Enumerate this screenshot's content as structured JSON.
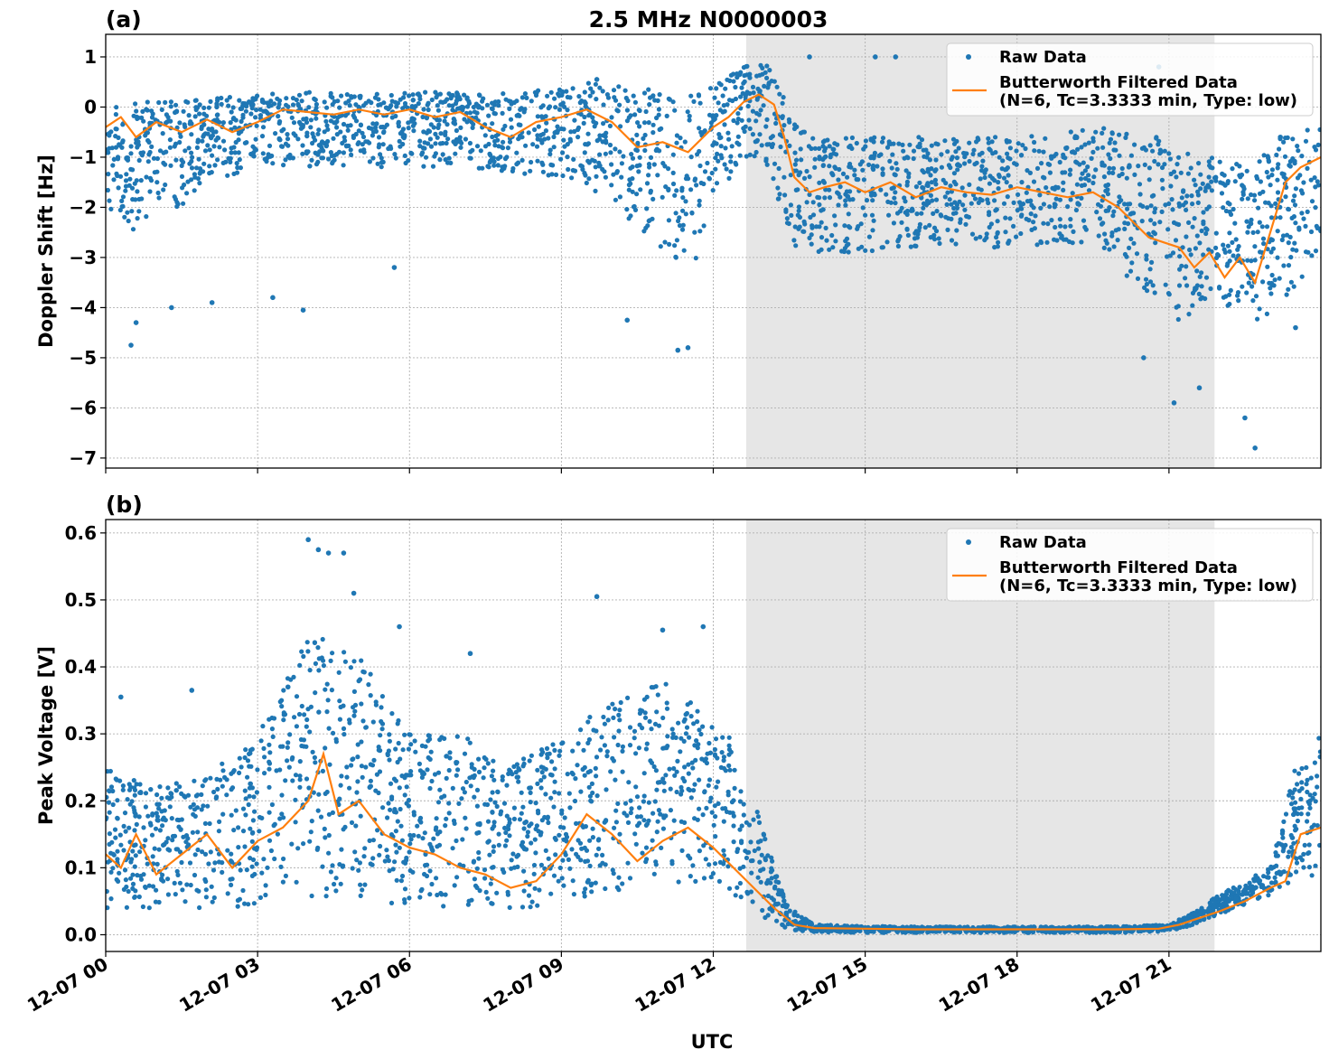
{
  "figure": {
    "title": "2.5 MHz N0000003",
    "xlabel": "UTC",
    "colors": {
      "raw": "#1f77b4",
      "filtered": "#ff7f0e",
      "shade": "#e6e6e6",
      "grid": "#b0b0b0"
    }
  },
  "chart_data": [
    {
      "type": "scatter",
      "panel_label": "(a)",
      "title": "2.5 MHz N0000003",
      "xlabel": "",
      "ylabel": "Doppler Shift [Hz]",
      "x_unit": "hours UTC since 12-07 00:00",
      "xlim": [
        0,
        24
      ],
      "ylim": [
        -7.2,
        1.45
      ],
      "yticks": [
        1,
        0,
        -1,
        -2,
        -3,
        -4,
        -5,
        -6,
        -7
      ],
      "ytick_labels": [
        "1",
        "0",
        "−1",
        "−2",
        "−3",
        "−4",
        "−5",
        "−6",
        "−7"
      ],
      "grid": true,
      "shaded_interval": [
        12.65,
        21.9
      ],
      "legend_position": "top-right",
      "legend": {
        "raw_label": "Raw Data",
        "filtered_label_line1": "Butterworth Filtered Data",
        "filtered_label_line2": "(N=6, Tc=3.3333 min, Type: low)"
      },
      "series": [
        {
          "name": "Raw Data",
          "kind": "scatter",
          "envelope": {
            "x": [
              0,
              0.5,
              1,
              1.5,
              2,
              3,
              4,
              5,
              6,
              7,
              8,
              9,
              9.7,
              10.5,
              11,
              11.5,
              12,
              12.6,
              13,
              13.3,
              13.6,
              14,
              15,
              16,
              17,
              18,
              19,
              19.7,
              20.2,
              20.8,
              21.2,
              21.8,
              22.3,
              22.8,
              23.3,
              24
            ],
            "upper": [
              0.1,
              0.1,
              0.1,
              0.15,
              0.2,
              0.25,
              0.3,
              0.25,
              0.3,
              0.3,
              0.3,
              0.4,
              0.5,
              0.4,
              0.3,
              0.35,
              0.4,
              0.8,
              0.9,
              0.5,
              -0.3,
              -0.6,
              -0.6,
              -0.6,
              -0.6,
              -0.6,
              -0.5,
              -0.4,
              -0.5,
              -0.6,
              -0.9,
              -1.0,
              -1.0,
              -1.0,
              -0.5,
              -0.3
            ],
            "lower": [
              -2.0,
              -2.5,
              -2.0,
              -2.0,
              -1.5,
              -1.2,
              -1.2,
              -1.2,
              -1.2,
              -1.2,
              -1.3,
              -1.5,
              -1.7,
              -2.5,
              -3.0,
              -3.5,
              -2.0,
              -1.0,
              -1.0,
              -2.0,
              -2.8,
              -2.9,
              -2.9,
              -2.8,
              -2.8,
              -2.8,
              -2.8,
              -2.9,
              -3.5,
              -4.0,
              -4.3,
              -4.0,
              -4.0,
              -4.3,
              -3.8,
              -3.0
            ],
            "outliers_low": [
              [
                0.5,
                -4.75
              ],
              [
                0.6,
                -4.3
              ],
              [
                1.3,
                -4.0
              ],
              [
                2.1,
                -3.9
              ],
              [
                3.3,
                -3.8
              ],
              [
                3.9,
                -4.05
              ],
              [
                5.7,
                -3.2
              ],
              [
                10.3,
                -4.25
              ],
              [
                11.3,
                -4.85
              ],
              [
                11.5,
                -4.8
              ],
              [
                20.5,
                -5.0
              ],
              [
                21.1,
                -5.9
              ],
              [
                21.6,
                -5.6
              ],
              [
                22.5,
                -6.2
              ],
              [
                22.7,
                -6.8
              ],
              [
                23.5,
                -4.4
              ]
            ],
            "outliers_high": [
              [
                9.7,
                0.55
              ],
              [
                13.9,
                1.0
              ],
              [
                15.2,
                1.0
              ],
              [
                15.6,
                1.0
              ],
              [
                20.8,
                0.8
              ],
              [
                23.2,
                -0.6
              ]
            ]
          }
        },
        {
          "name": "Butterworth Filtered Data (N=6, Tc=3.3333 min, Type: low)",
          "kind": "line",
          "x": [
            0,
            0.3,
            0.6,
            1,
            1.5,
            2,
            2.5,
            3,
            3.5,
            4,
            4.5,
            5,
            5.5,
            6,
            6.5,
            7,
            7.5,
            8,
            8.5,
            9,
            9.5,
            10,
            10.5,
            11,
            11.5,
            12,
            12.3,
            12.6,
            12.9,
            13.2,
            13.4,
            13.6,
            13.9,
            14.2,
            14.6,
            15,
            15.5,
            16,
            16.5,
            17,
            17.5,
            18,
            18.5,
            19,
            19.5,
            20,
            20.3,
            20.6,
            20.9,
            21.2,
            21.5,
            21.8,
            22.1,
            22.4,
            22.7,
            23,
            23.3,
            23.6,
            24
          ],
          "y": [
            -0.4,
            -0.2,
            -0.6,
            -0.3,
            -0.5,
            -0.25,
            -0.5,
            -0.3,
            -0.05,
            -0.1,
            -0.15,
            -0.05,
            -0.15,
            -0.05,
            -0.2,
            -0.1,
            -0.4,
            -0.6,
            -0.3,
            -0.2,
            -0.05,
            -0.3,
            -0.8,
            -0.7,
            -0.9,
            -0.4,
            -0.2,
            0.1,
            0.25,
            0.05,
            -0.6,
            -1.4,
            -1.7,
            -1.6,
            -1.5,
            -1.7,
            -1.5,
            -1.8,
            -1.6,
            -1.7,
            -1.75,
            -1.6,
            -1.7,
            -1.8,
            -1.7,
            -2.0,
            -2.3,
            -2.6,
            -2.7,
            -2.8,
            -3.2,
            -2.9,
            -3.4,
            -3.0,
            -3.5,
            -2.5,
            -1.5,
            -1.2,
            -1.0
          ]
        }
      ]
    },
    {
      "type": "scatter",
      "panel_label": "(b)",
      "title": "",
      "xlabel": "UTC",
      "ylabel": "Peak Voltage [V]",
      "x_unit": "hours UTC since 12-07 00:00",
      "xlim": [
        0,
        24
      ],
      "ylim": [
        -0.025,
        0.62
      ],
      "yticks": [
        0.0,
        0.1,
        0.2,
        0.3,
        0.4,
        0.5,
        0.6
      ],
      "ytick_labels": [
        "0.0",
        "0.1",
        "0.2",
        "0.3",
        "0.4",
        "0.5",
        "0.6"
      ],
      "xticks": [
        0,
        3,
        6,
        9,
        12,
        15,
        18,
        21
      ],
      "xtick_labels": [
        "12-07 00",
        "12-07 03",
        "12-07 06",
        "12-07 09",
        "12-07 12",
        "12-07 15",
        "12-07 18",
        "12-07 21"
      ],
      "grid": true,
      "shaded_interval": [
        12.65,
        21.9
      ],
      "legend_position": "top-right",
      "legend": {
        "raw_label": "Raw Data",
        "filtered_label_line1": "Butterworth Filtered Data",
        "filtered_label_line2": "(N=6, Tc=3.3333 min, Type: low)"
      },
      "series": [
        {
          "name": "Raw Data",
          "kind": "scatter",
          "envelope": {
            "x": [
              0,
              1,
              2,
              3,
              4,
              5,
              6,
              7,
              8,
              9,
              10,
              11,
              12,
              12.6,
              13,
              13.5,
              14,
              15,
              16,
              17,
              18,
              19,
              20,
              21,
              21.5,
              22,
              22.5,
              23,
              23.5,
              24
            ],
            "upper": [
              0.25,
              0.22,
              0.24,
              0.3,
              0.45,
              0.42,
              0.3,
              0.3,
              0.25,
              0.3,
              0.35,
              0.38,
              0.32,
              0.28,
              0.15,
              0.04,
              0.015,
              0.013,
              0.012,
              0.012,
              0.012,
              0.012,
              0.012,
              0.015,
              0.035,
              0.06,
              0.08,
              0.1,
              0.25,
              0.3
            ],
            "lower": [
              0.03,
              0.04,
              0.04,
              0.04,
              0.05,
              0.05,
              0.04,
              0.04,
              0.035,
              0.05,
              0.06,
              0.07,
              0.07,
              0.05,
              0.02,
              0.007,
              0.004,
              0.003,
              0.003,
              0.003,
              0.003,
              0.003,
              0.003,
              0.005,
              0.015,
              0.03,
              0.045,
              0.06,
              0.08,
              0.09
            ],
            "outliers_high": [
              [
                0.3,
                0.355
              ],
              [
                1.7,
                0.365
              ],
              [
                3.6,
                0.37
              ],
              [
                4.0,
                0.59
              ],
              [
                4.2,
                0.575
              ],
              [
                4.4,
                0.57
              ],
              [
                4.7,
                0.57
              ],
              [
                4.9,
                0.51
              ],
              [
                5.8,
                0.46
              ],
              [
                7.2,
                0.42
              ],
              [
                9.7,
                0.505
              ],
              [
                11.0,
                0.455
              ],
              [
                11.8,
                0.46
              ]
            ]
          }
        },
        {
          "name": "Butterworth Filtered Data (N=6, Tc=3.3333 min, Type: low)",
          "kind": "line",
          "x": [
            0,
            0.3,
            0.6,
            1,
            1.5,
            2,
            2.5,
            3,
            3.5,
            4,
            4.3,
            4.6,
            5,
            5.5,
            6,
            6.5,
            7,
            7.5,
            8,
            8.5,
            9,
            9.5,
            10,
            10.5,
            11,
            11.5,
            12,
            12.4,
            12.8,
            13.2,
            13.6,
            14,
            15,
            16,
            17,
            18,
            19,
            20,
            20.8,
            21.2,
            21.6,
            22,
            22.5,
            23,
            23.3,
            23.6,
            24
          ],
          "y": [
            0.12,
            0.1,
            0.15,
            0.09,
            0.12,
            0.15,
            0.1,
            0.14,
            0.16,
            0.2,
            0.27,
            0.18,
            0.2,
            0.15,
            0.13,
            0.12,
            0.1,
            0.09,
            0.07,
            0.08,
            0.12,
            0.18,
            0.15,
            0.11,
            0.14,
            0.16,
            0.13,
            0.1,
            0.07,
            0.04,
            0.015,
            0.01,
            0.009,
            0.008,
            0.008,
            0.008,
            0.008,
            0.008,
            0.009,
            0.015,
            0.025,
            0.035,
            0.05,
            0.07,
            0.08,
            0.15,
            0.16
          ]
        }
      ]
    }
  ]
}
